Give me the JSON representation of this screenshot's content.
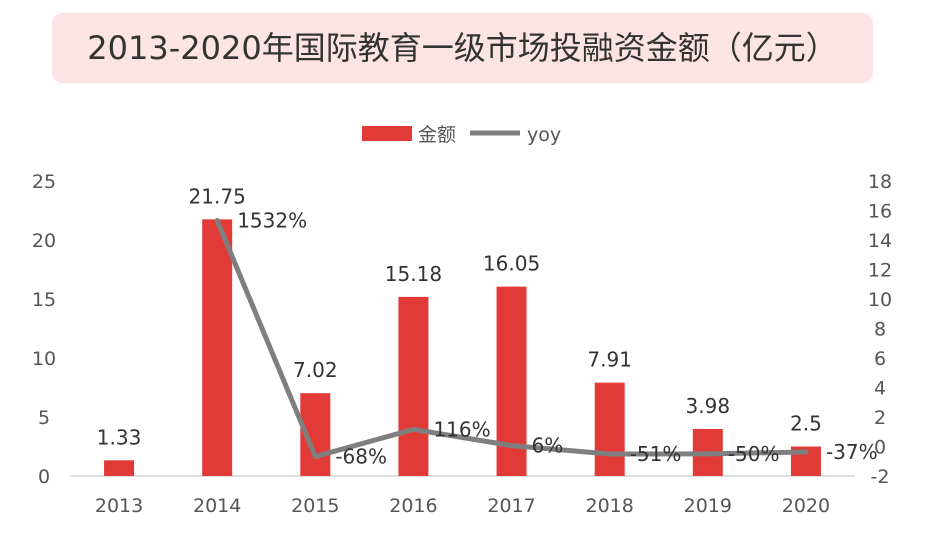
{
  "chart_data": {
    "type": "bar",
    "title": "2013-2020年国际教育一级市场投融资金额（亿元）",
    "categories": [
      "2013",
      "2014",
      "2015",
      "2016",
      "2017",
      "2018",
      "2019",
      "2020"
    ],
    "series": [
      {
        "name": "金额",
        "type": "bar",
        "axis": "left",
        "color": "#e23a36",
        "values": [
          1.33,
          21.75,
          7.02,
          15.18,
          16.05,
          7.91,
          3.98,
          2.5
        ],
        "labels": [
          "1.33",
          "21.75",
          "7.02",
          "15.18",
          "16.05",
          "7.91",
          "3.98",
          "2.5"
        ]
      },
      {
        "name": "yoy",
        "type": "line",
        "axis": "right",
        "color": "#7f7f7f",
        "values": [
          null,
          15.32,
          -0.68,
          1.16,
          0.06,
          -0.51,
          -0.5,
          -0.37
        ],
        "labels": [
          null,
          "1532%",
          "-68%",
          "116%",
          "6%",
          "-51%",
          "-50%",
          "-37%"
        ]
      }
    ],
    "y_left": {
      "min": 0,
      "max": 25,
      "step": 5,
      "ticks": [
        "0",
        "5",
        "10",
        "15",
        "20",
        "25"
      ]
    },
    "y_right": {
      "min": -2,
      "max": 18,
      "step": 2,
      "ticks": [
        "-2",
        "0",
        "2",
        "4",
        "6",
        "8",
        "10",
        "12",
        "14",
        "16",
        "18"
      ]
    },
    "legend_position": "top-center",
    "grid": false
  }
}
